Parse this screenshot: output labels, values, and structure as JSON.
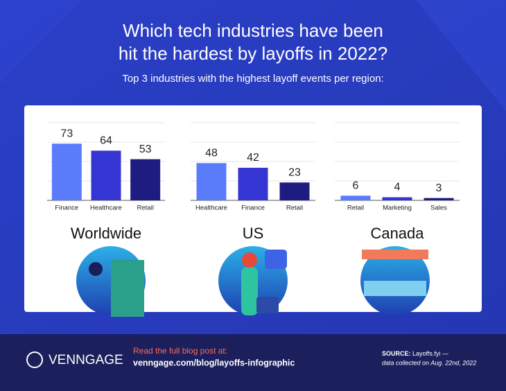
{
  "title_lines": [
    "Which tech industries have been",
    "hit the hardest by layoffs in 2022?"
  ],
  "subtitle": "Top 3 industries with the highest layoff events per region:",
  "chart_data": [
    {
      "type": "bar",
      "title": "Worldwide",
      "categories": [
        "Finance",
        "Healthcare",
        "Retail"
      ],
      "values": [
        73,
        64,
        53
      ],
      "colors": [
        "#5a7cfb",
        "#3535d4",
        "#1e1c80"
      ],
      "ylim": [
        0,
        100
      ],
      "yticks": [
        0,
        25,
        50,
        75,
        100
      ],
      "grid": true
    },
    {
      "type": "bar",
      "title": "US",
      "categories": [
        "Healthcare",
        "Finance",
        "Retail"
      ],
      "values": [
        48,
        42,
        23
      ],
      "colors": [
        "#5a7cfb",
        "#3535d4",
        "#1e1c80"
      ],
      "ylim": [
        0,
        100
      ],
      "yticks": [
        0,
        25,
        50,
        75,
        100
      ],
      "grid": true
    },
    {
      "type": "bar",
      "title": "Canada",
      "categories": [
        "Retail",
        "Marketing",
        "Sales"
      ],
      "values": [
        6,
        4,
        3
      ],
      "colors": [
        "#5a7cfb",
        "#3535d4",
        "#1e1c80"
      ],
      "ylim": [
        0,
        100
      ],
      "yticks": [
        0,
        25,
        50,
        75,
        100
      ],
      "grid": true
    }
  ],
  "footer": {
    "brand": "VENNGAGE",
    "cta": "Read the full blog post at:",
    "url": "venngage.com/blog/layoffs-infographic",
    "source_label": "SOURCE:",
    "source_text": "Layoffs.fyi —",
    "source_note": "data collected on Aug. 22nd, 2022"
  }
}
